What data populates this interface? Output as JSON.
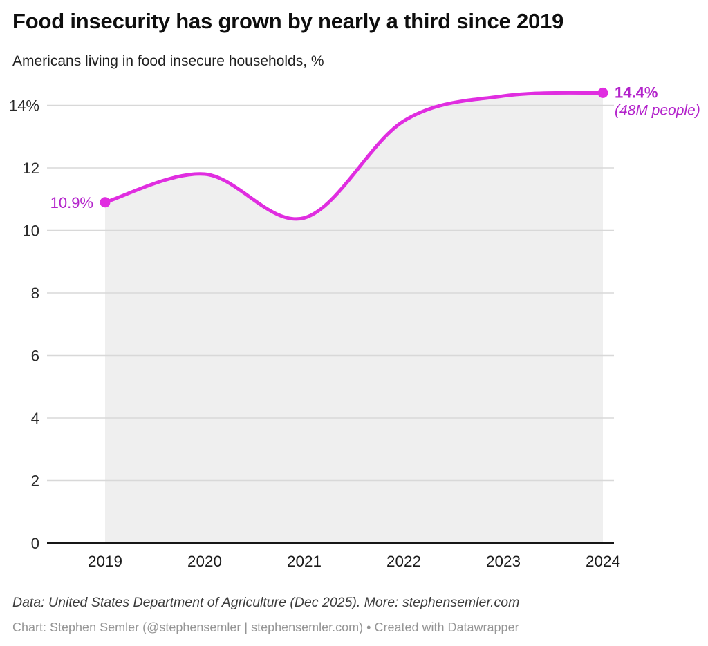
{
  "header": {
    "title": "Food insecurity has grown by nearly a third since 2019",
    "subtitle": "Americans living in food insecure households, %"
  },
  "chart_data": {
    "type": "line",
    "x": [
      2019,
      2020,
      2021,
      2022,
      2023,
      2024
    ],
    "x_tick_labels": [
      "2019",
      "2020",
      "2021",
      "2022",
      "2023",
      "2024"
    ],
    "series": [
      {
        "name": "Americans living in food insecure households, %",
        "values": [
          10.9,
          11.8,
          10.4,
          13.5,
          14.3,
          14.4
        ]
      }
    ],
    "ylim": [
      0,
      14.7
    ],
    "yticks": [
      0,
      2,
      4,
      6,
      8,
      10,
      12,
      14
    ],
    "ytick_labels": [
      "0",
      "2",
      "4",
      "6",
      "8",
      "10",
      "12",
      "14%"
    ],
    "grid": true,
    "legend": false,
    "smoothing": "curved",
    "area_fill": true,
    "annotations": {
      "start_label": "10.9%",
      "end_label": "14.4%",
      "end_note": "(48M people)"
    },
    "colors": {
      "line": "#e02de0",
      "point": "#e02de0",
      "value_labels": "#b322cb",
      "area": "#efefef",
      "gridline": "#d8d8d8",
      "axis": "#161616",
      "tick_text": "#2a2a2a"
    }
  },
  "footer": {
    "source_note": "Data: United States Department of Agriculture (Dec 2025). More: stephensemler.com",
    "byline": "Chart: Stephen Semler (@stephensemler | stephensemler.com) • Created with Datawrapper"
  }
}
